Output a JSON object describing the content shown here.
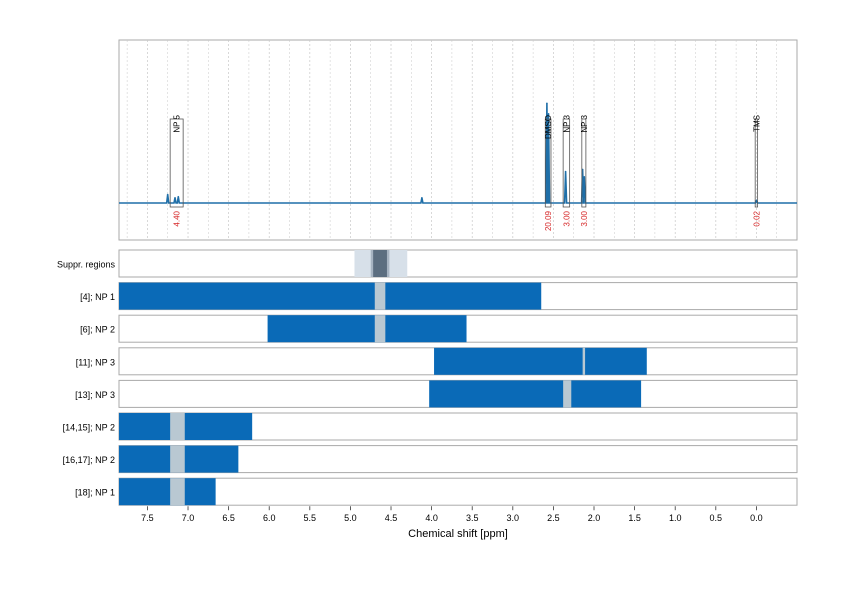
{
  "chart_data": {
    "type": "line",
    "title": "",
    "xlabel": "Chemical shift [ppm]",
    "ylabel": "",
    "xlim": [
      7.85,
      -0.5
    ],
    "x_reversed": true,
    "grid": true,
    "x_ticks": [
      "7.5",
      "7.0",
      "6.5",
      "6.0",
      "5.5",
      "5.0",
      "4.5",
      "4.0",
      "3.5",
      "3.0",
      "2.5",
      "2.0",
      "1.5",
      "1.0",
      "0.5",
      "0.0"
    ],
    "spectrum": {
      "baseline_level": 0,
      "peaks": [
        {
          "x": 7.25,
          "y": 0.08
        },
        {
          "x": 7.16,
          "y": 0.05
        },
        {
          "x": 7.12,
          "y": 0.06
        },
        {
          "x": 4.12,
          "y": 0.05
        },
        {
          "x": 2.58,
          "y": 0.95
        },
        {
          "x": 2.56,
          "y": 0.85
        },
        {
          "x": 2.35,
          "y": 0.3
        },
        {
          "x": 2.14,
          "y": 0.32
        },
        {
          "x": 2.12,
          "y": 0.25
        },
        {
          "x": 0.0,
          "y": 0.02
        }
      ]
    },
    "annotations": [
      {
        "label": "NP 5",
        "x_from": 7.22,
        "x_to": 7.06,
        "integral": "4.40",
        "box_top": 0.8
      },
      {
        "label": "DMSO",
        "x_from": 2.6,
        "x_to": 2.53,
        "integral": "20.09",
        "box_top": 0.8
      },
      {
        "label": "NP 3",
        "x_from": 2.38,
        "x_to": 2.3,
        "integral": "3.00",
        "box_top": 0.8
      },
      {
        "label": "NP 3",
        "x_from": 2.15,
        "x_to": 2.1,
        "integral": "3.00",
        "box_top": 0.8
      },
      {
        "label": "TMS",
        "x_from": 0.015,
        "x_to": -0.015,
        "integral": "0.02",
        "box_top": 0.8
      }
    ],
    "region_rows": [
      {
        "label": "Suppr. regions",
        "kind": "suppr",
        "ranges": [
          [
            4.95,
            4.3
          ]
        ],
        "dark": [
          [
            4.72,
            4.55
          ]
        ],
        "mid": [
          [
            4.75,
            4.52
          ]
        ]
      },
      {
        "label": "[4]; NP 1",
        "kind": "bar",
        "ranges": [
          [
            7.85,
            2.65
          ]
        ],
        "gaps": [
          [
            4.7,
            4.57
          ]
        ]
      },
      {
        "label": "[6]; NP 2",
        "kind": "bar",
        "ranges": [
          [
            6.02,
            3.57
          ]
        ],
        "gaps": [
          [
            4.7,
            4.57
          ]
        ]
      },
      {
        "label": "[11]; NP 3",
        "kind": "bar",
        "ranges": [
          [
            3.97,
            1.35
          ]
        ],
        "gaps": [
          [
            2.14,
            2.11
          ]
        ]
      },
      {
        "label": "[13]; NP 3",
        "kind": "bar",
        "ranges": [
          [
            4.03,
            1.42
          ]
        ],
        "gaps": [
          [
            2.38,
            2.28
          ]
        ]
      },
      {
        "label": "[14,15]; NP 2",
        "kind": "bar",
        "ranges": [
          [
            7.85,
            6.21
          ]
        ],
        "gaps": [
          [
            7.22,
            7.04
          ]
        ]
      },
      {
        "label": "[16,17]; NP 2",
        "kind": "bar",
        "ranges": [
          [
            7.85,
            6.38
          ]
        ],
        "gaps": [
          [
            7.22,
            7.04
          ]
        ]
      },
      {
        "label": "[18]; NP 1",
        "kind": "bar",
        "ranges": [
          [
            7.85,
            6.66
          ]
        ],
        "gaps": [
          [
            7.22,
            7.04
          ]
        ]
      }
    ],
    "colors": {
      "spectrum": "#1f6fa8",
      "bar": "#0a6ab7",
      "gap": "#b9c8d2",
      "integral_text": "#d62728",
      "suppr_light": "#d7e0e9",
      "suppr_mid": "#a7b4c2",
      "suppr_dark": "#5c6e80",
      "grid": "#c8c8c8",
      "frame": "#aaaaaa"
    }
  }
}
